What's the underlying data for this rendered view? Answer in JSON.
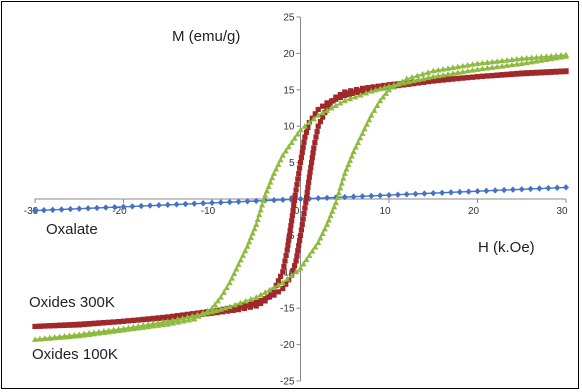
{
  "chart_data": {
    "type": "scatter",
    "title": "",
    "xlabel": "H (k.Oe)",
    "ylabel": "M (emu/g)",
    "xlim": [
      -30,
      30
    ],
    "ylim": [
      -25,
      25
    ],
    "x_ticks": [
      -30,
      -20,
      -10,
      0,
      10,
      20,
      30
    ],
    "y_ticks": [
      -25,
      -20,
      -15,
      -10,
      -5,
      0,
      5,
      10,
      15,
      20,
      25
    ],
    "grid": false,
    "series": [
      {
        "name": "Oxalate",
        "color": "#4472c4",
        "marker": "diamond",
        "points": [
          [
            -30,
            -1.6
          ],
          [
            -20,
            -1.07
          ],
          [
            -10,
            -0.53
          ],
          [
            0,
            0
          ],
          [
            10,
            0.53
          ],
          [
            20,
            1.07
          ],
          [
            30,
            1.6
          ]
        ]
      },
      {
        "name": "Oxides 300K",
        "color": "#a0282b",
        "marker": "square",
        "points": [
          [
            30,
            17.6
          ],
          [
            25,
            17.3
          ],
          [
            20,
            16.8
          ],
          [
            15,
            16.3
          ],
          [
            10,
            15.7
          ],
          [
            7,
            15.2
          ],
          [
            5,
            14.7
          ],
          [
            4,
            14.0
          ],
          [
            3,
            12.5
          ],
          [
            2,
            10.0
          ],
          [
            1.5,
            7.0
          ],
          [
            1,
            3.0
          ],
          [
            0.6,
            -0.5
          ],
          [
            0,
            -5.0
          ],
          [
            -0.5,
            -8.5
          ],
          [
            -1,
            -10.5
          ],
          [
            -2,
            -12.3
          ],
          [
            -3,
            -13.2
          ],
          [
            -5,
            -14.2
          ],
          [
            -7,
            -14.8
          ],
          [
            -10,
            -15.4
          ],
          [
            -15,
            -16.2
          ],
          [
            -20,
            -16.8
          ],
          [
            -25,
            -17.2
          ],
          [
            -30,
            -17.5
          ],
          [
            -25,
            -17.3
          ],
          [
            -20,
            -16.8
          ],
          [
            -15,
            -16.3
          ],
          [
            -10,
            -15.7
          ],
          [
            -7,
            -15.2
          ],
          [
            -5,
            -14.7
          ],
          [
            -4,
            -14.0
          ],
          [
            -3,
            -12.5
          ],
          [
            -2,
            -10.0
          ],
          [
            -1.5,
            -7.0
          ],
          [
            -1,
            -3.0
          ],
          [
            -0.6,
            0.5
          ],
          [
            0,
            5.0
          ],
          [
            0.5,
            8.5
          ],
          [
            1,
            10.5
          ],
          [
            2,
            12.3
          ],
          [
            3,
            13.2
          ],
          [
            5,
            14.2
          ],
          [
            7,
            14.8
          ],
          [
            10,
            15.4
          ],
          [
            15,
            16.2
          ],
          [
            20,
            16.8
          ],
          [
            25,
            17.2
          ],
          [
            30,
            17.5
          ]
        ]
      },
      {
        "name": "Oxides 100K",
        "color": "#8dbb3e",
        "marker": "triangle",
        "points": [
          [
            30,
            19.8
          ],
          [
            25,
            19.3
          ],
          [
            20,
            18.6
          ],
          [
            15,
            17.6
          ],
          [
            12,
            16.5
          ],
          [
            10,
            15.0
          ],
          [
            9,
            13.5
          ],
          [
            8,
            11.5
          ],
          [
            7,
            9.0
          ],
          [
            6,
            6.5
          ],
          [
            5,
            3.5
          ],
          [
            4.5,
            1.5
          ],
          [
            4,
            -0.5
          ],
          [
            3,
            -3.5
          ],
          [
            2,
            -6.0
          ],
          [
            0,
            -9.5
          ],
          [
            -2,
            -11.5
          ],
          [
            -5,
            -13.5
          ],
          [
            -8,
            -14.8
          ],
          [
            -10,
            -15.5
          ],
          [
            -15,
            -16.8
          ],
          [
            -20,
            -17.8
          ],
          [
            -25,
            -18.6
          ],
          [
            -30,
            -19.3
          ],
          [
            -25,
            -18.8
          ],
          [
            -20,
            -18.0
          ],
          [
            -15,
            -17.2
          ],
          [
            -12,
            -16.5
          ],
          [
            -10,
            -15.0
          ],
          [
            -9,
            -13.5
          ],
          [
            -8,
            -11.5
          ],
          [
            -7,
            -9.0
          ],
          [
            -6,
            -6.5
          ],
          [
            -5,
            -3.5
          ],
          [
            -4.5,
            -1.5
          ],
          [
            -4,
            0.5
          ],
          [
            -3,
            3.5
          ],
          [
            -2,
            6.0
          ],
          [
            0,
            9.5
          ],
          [
            2,
            11.5
          ],
          [
            5,
            13.5
          ],
          [
            8,
            14.8
          ],
          [
            10,
            15.5
          ],
          [
            15,
            16.8
          ],
          [
            20,
            17.8
          ],
          [
            25,
            18.6
          ],
          [
            30,
            19.6
          ]
        ]
      }
    ]
  }
}
